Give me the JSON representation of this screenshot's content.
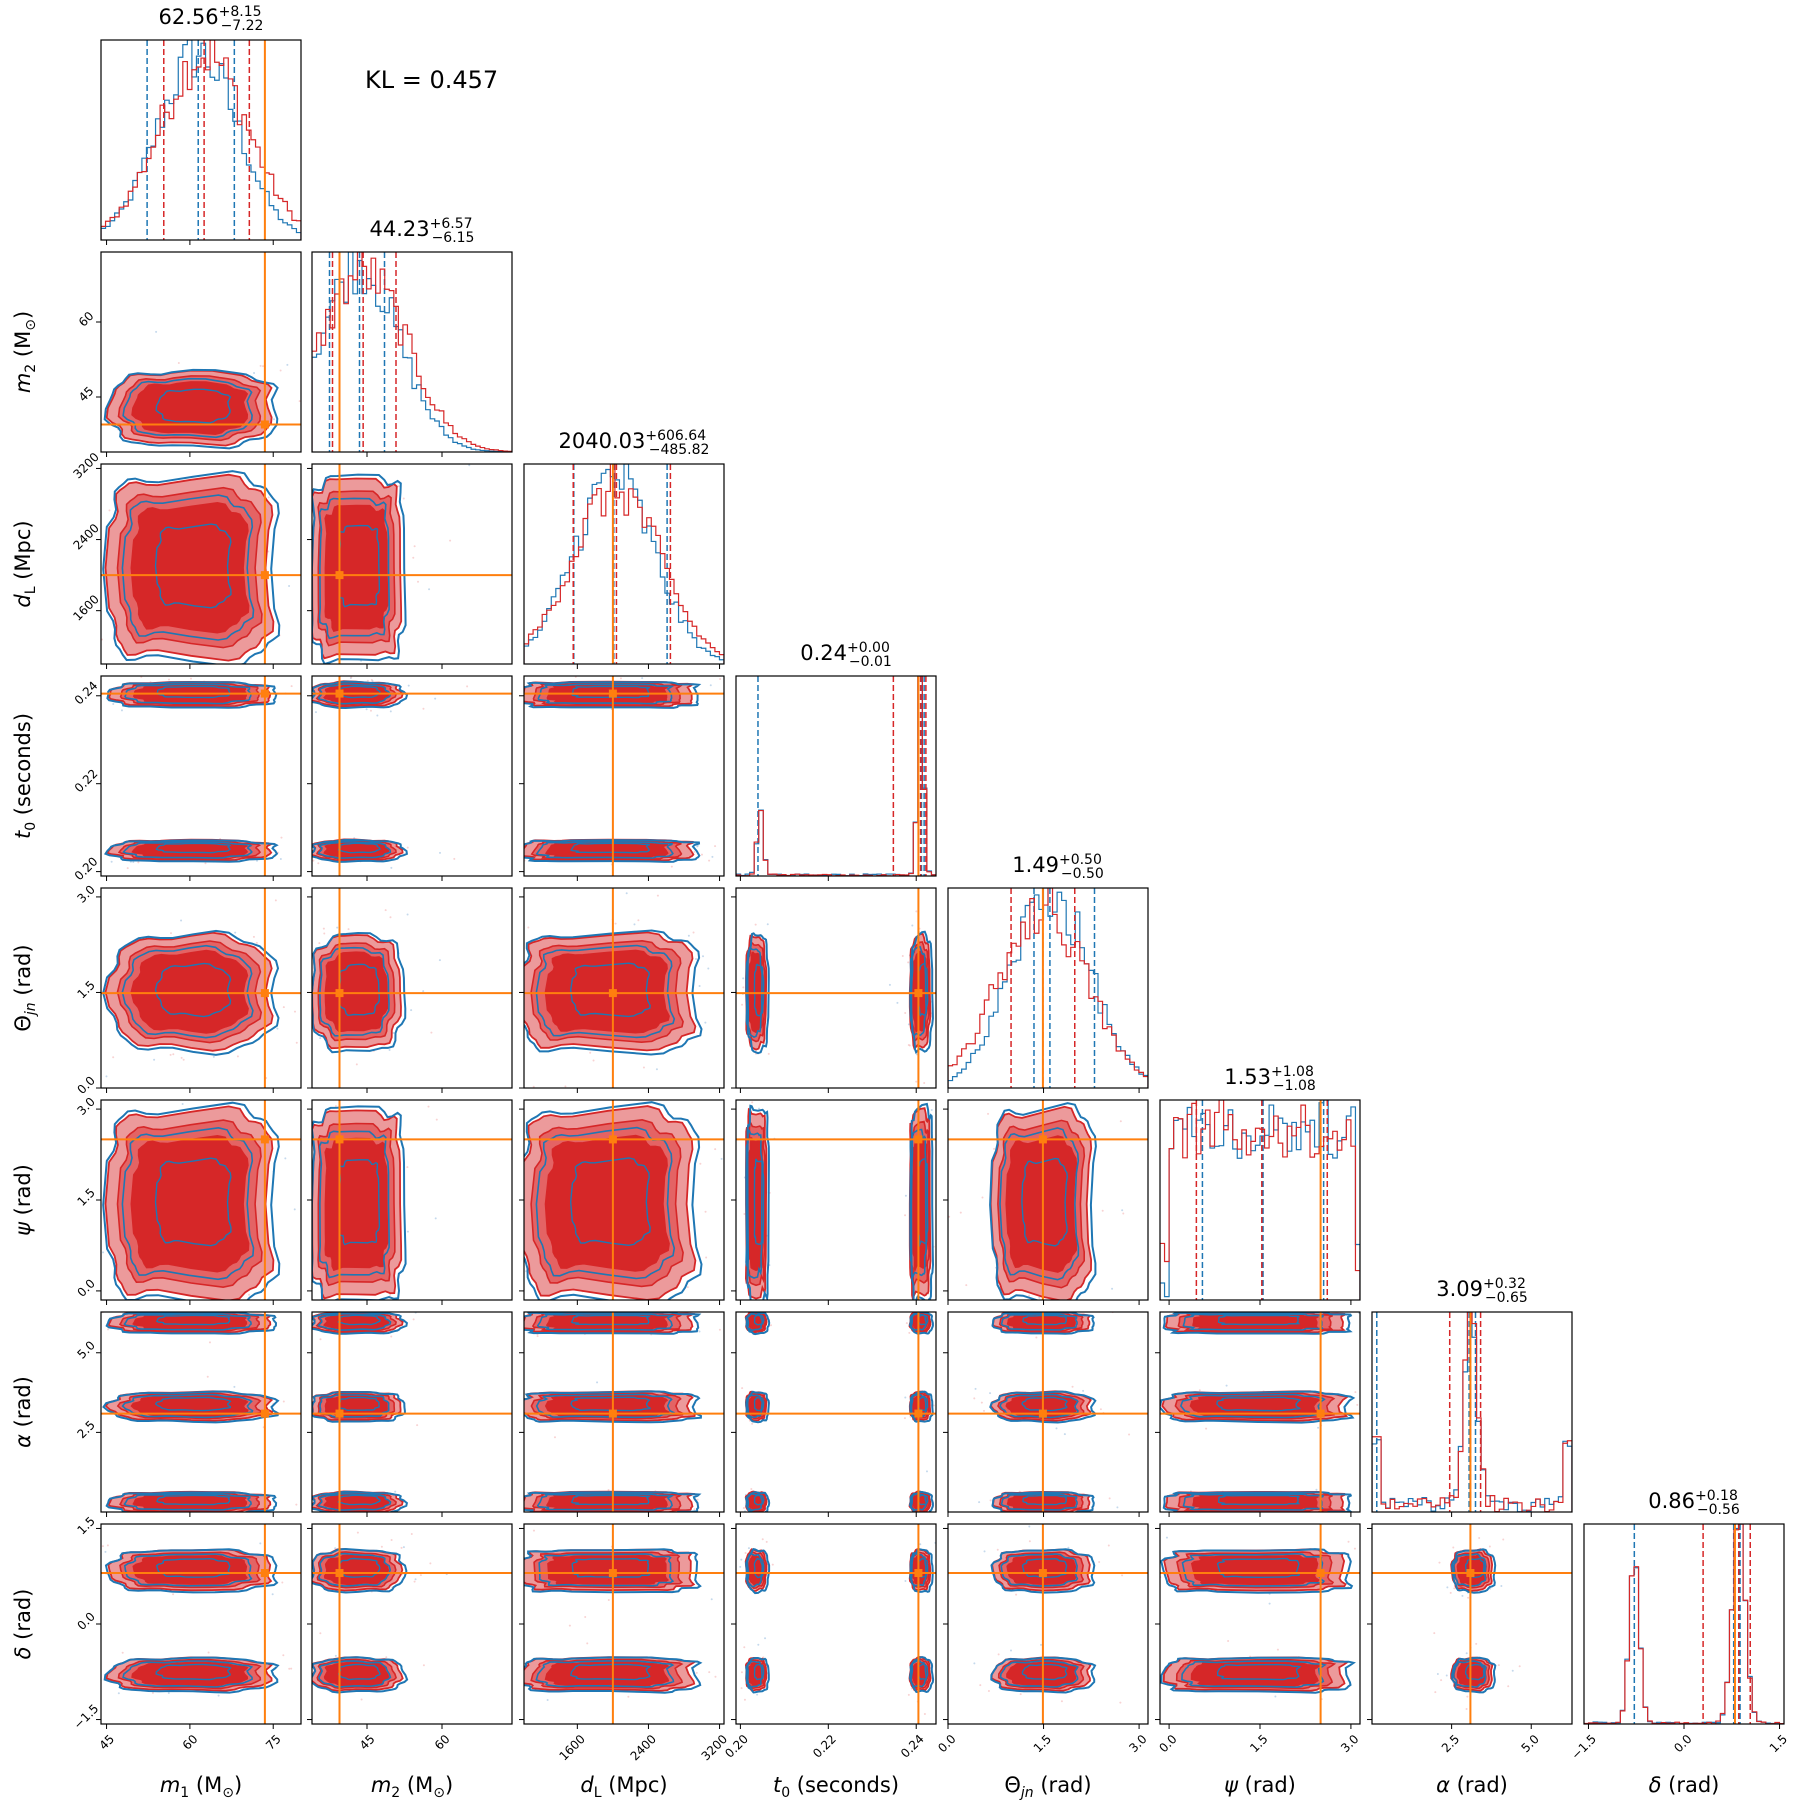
{
  "figure": {
    "kl_text": "KL = 0.457",
    "colors": {
      "blue": "#1f77b4",
      "red": "#d62728",
      "red_light_fill": "#ec9a9b",
      "red_mid_fill": "#e46364",
      "truth": "#ff7f0e"
    }
  },
  "chart_data": {
    "type": "corner",
    "series": [
      {
        "name": "",
        "color": "#1f77b4",
        "style": "contour lines + step histograms"
      },
      {
        "name": "",
        "color": "#d62728",
        "style": "filled contours + step histograms"
      }
    ],
    "parameters": [
      {
        "label": "m_1 (M_sun)",
        "median": "62.56",
        "plus": "+8.15",
        "minus": "−7.22",
        "range": [
          44,
          80
        ],
        "ticks": [
          {
            "v": 45,
            "t": "45"
          },
          {
            "v": 60,
            "t": "60"
          },
          {
            "v": 75,
            "t": "75"
          }
        ],
        "truth": 73.5,
        "red_quantiles": [
          55.3,
          62.56,
          70.7
        ],
        "blue_quantiles": [
          52.3,
          61.5,
          68.0
        ]
      },
      {
        "label": "m_2 (M_sun)",
        "median": "44.23",
        "plus": "+6.57",
        "minus": "−6.15",
        "range": [
          34,
          74
        ],
        "ticks": [
          {
            "v": 45,
            "t": "45"
          },
          {
            "v": 60,
            "t": "60"
          }
        ],
        "truth": 39.5,
        "red_quantiles": [
          38.1,
          44.23,
          50.8
        ],
        "blue_quantiles": [
          37.5,
          43.5,
          48.5
        ]
      },
      {
        "label": "d_L (Mpc)",
        "median": "2040.03",
        "plus": "+606.64",
        "minus": "−485.82",
        "range": [
          1000,
          3250
        ],
        "ticks": [
          {
            "v": 1600,
            "t": "1600"
          },
          {
            "v": 2400,
            "t": "2400"
          },
          {
            "v": 3200,
            "t": "3200"
          }
        ],
        "truth": 2000,
        "red_quantiles": [
          1554,
          2040,
          2647
        ],
        "blue_quantiles": [
          1560,
          2010,
          2610
        ]
      },
      {
        "label": "t_0 (seconds)",
        "median": "0.24",
        "plus": "+0.00",
        "minus": "−0.01",
        "range": [
          0.199,
          0.2445
        ],
        "ticks": [
          {
            "v": 0.2,
            "t": "0.20"
          },
          {
            "v": 0.22,
            "t": "0.22"
          },
          {
            "v": 0.24,
            "t": "0.24"
          }
        ],
        "truth": 0.2405,
        "red_quantiles": [
          0.2348,
          0.241,
          0.2422
        ],
        "blue_quantiles": [
          0.204,
          0.2412,
          0.2418
        ]
      },
      {
        "label": "Θ_jn (rad)",
        "median": "1.49",
        "plus": "+0.50",
        "minus": "−0.50",
        "range": [
          0,
          3.14
        ],
        "ticks": [
          {
            "v": 0.0,
            "t": "0.0"
          },
          {
            "v": 1.5,
            "t": "1.5"
          },
          {
            "v": 3.0,
            "t": "3.0"
          }
        ],
        "truth": 1.49,
        "red_quantiles": [
          0.99,
          1.49,
          1.99
        ],
        "blue_quantiles": [
          1.35,
          1.6,
          2.3
        ]
      },
      {
        "label": "ψ (rad)",
        "median": "1.53",
        "plus": "+1.08",
        "minus": "−1.08",
        "range": [
          -0.15,
          3.15
        ],
        "ticks": [
          {
            "v": 0.0,
            "t": "0.0"
          },
          {
            "v": 1.5,
            "t": "1.5"
          },
          {
            "v": 3.0,
            "t": "3.0"
          }
        ],
        "truth": 2.5,
        "red_quantiles": [
          0.45,
          1.53,
          2.61
        ],
        "blue_quantiles": [
          0.55,
          1.55,
          2.55
        ]
      },
      {
        "label": "α (rad)",
        "median": "3.09",
        "plus": "+0.32",
        "minus": "−0.65",
        "range": [
          0,
          6.28
        ],
        "ticks": [
          {
            "v": 2.5,
            "t": "2.5"
          },
          {
            "v": 5.0,
            "t": "5.0"
          }
        ],
        "truth": 3.09,
        "red_quantiles": [
          2.44,
          3.09,
          3.41
        ],
        "blue_quantiles": [
          0.15,
          3.05,
          3.25
        ]
      },
      {
        "label": "δ (rad)",
        "median": "0.86",
        "plus": "+0.18",
        "minus": "−0.56",
        "range": [
          -1.57,
          1.57
        ],
        "ticks": [
          {
            "v": -1.5,
            "t": "−1.5"
          },
          {
            "v": 0.0,
            "t": "0.0"
          },
          {
            "v": 1.5,
            "t": "1.5"
          }
        ],
        "truth": 0.8,
        "red_quantiles": [
          0.3,
          0.86,
          1.04
        ],
        "blue_quantiles": [
          -0.78,
          0.78,
          0.88
        ]
      }
    ]
  }
}
